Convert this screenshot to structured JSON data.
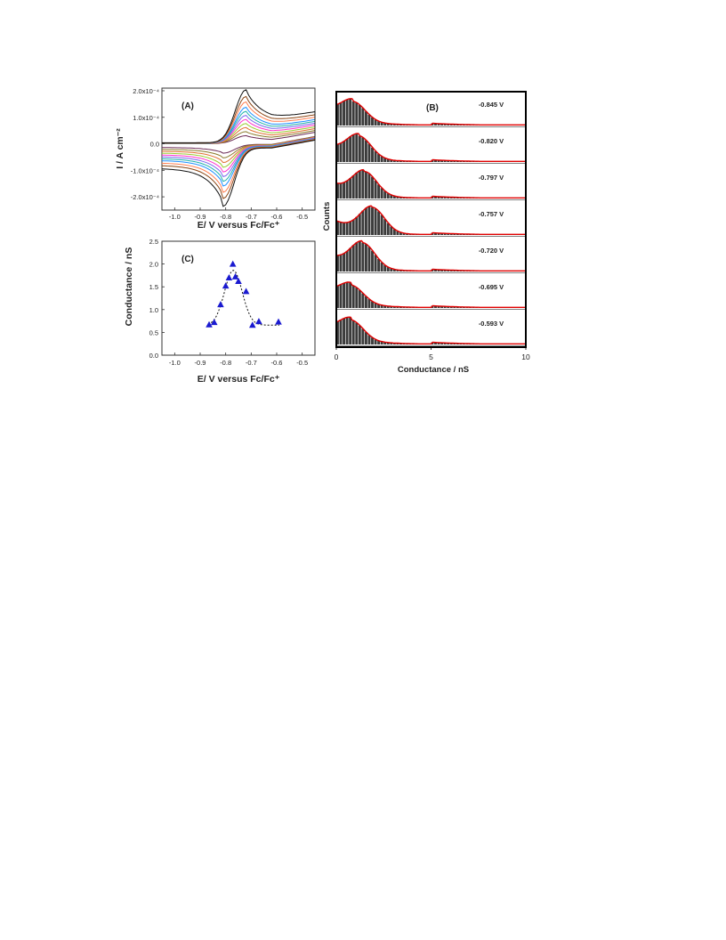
{
  "chart_data": [
    {
      "panel": "(A)",
      "type": "line",
      "title": "",
      "xlabel": "E/ V versus Fc/Fc⁺",
      "ylabel": "I / A cm⁻²",
      "xlim": [
        -1.05,
        -0.45
      ],
      "ylim": [
        -0.00025,
        0.00021
      ],
      "xticks": [
        -1.0,
        -0.9,
        -0.8,
        -0.7,
        -0.6,
        -0.5
      ],
      "xtick_labels": [
        "-1.0",
        "-0.9",
        "-0.8",
        "-0.7",
        "-0.6",
        "-0.5"
      ],
      "yticks": [
        0.0002,
        0.0001,
        0.0,
        -0.0001,
        -0.0002
      ],
      "ytick_labels": [
        "2.0x10⁻⁴",
        "1.0x10⁻⁴",
        "0.0",
        "-1.0x10⁻⁴",
        "-2.0x10⁻⁴"
      ],
      "anodic_peak_E": -0.72,
      "cathodic_peak_E": -0.81,
      "series": [
        {
          "color": "#6b2a55",
          "peak_current": 3e-05
        },
        {
          "color": "#8a7a2a",
          "peak_current": 4.5e-05
        },
        {
          "color": "#e07030",
          "peak_current": 6e-05
        },
        {
          "color": "#9acd32",
          "peak_current": 7.5e-05
        },
        {
          "color": "#ff33cc",
          "peak_current": 9e-05
        },
        {
          "color": "#7b68ee",
          "peak_current": 0.000105
        },
        {
          "color": "#20b2aa",
          "peak_current": 0.00012
        },
        {
          "color": "#1e90ff",
          "peak_current": 0.000135
        },
        {
          "color": "#ff7f50",
          "peak_current": 0.000155
        },
        {
          "color": "#8b4513",
          "peak_current": 0.000175
        },
        {
          "color": "#111111",
          "peak_current": 0.0002
        }
      ]
    },
    {
      "panel": "(B)",
      "type": "bar",
      "title": "",
      "xlabel": "Conductance / nS",
      "ylabel": "Counts",
      "xlim": [
        0,
        10
      ],
      "xticks": [
        0,
        5,
        10
      ],
      "fit_color": "#e00000",
      "histograms": [
        {
          "label": "-0.845 V",
          "peak_nS": 0.9,
          "peak_height": 0.6
        },
        {
          "label": "-0.820 V",
          "peak_nS": 1.2,
          "peak_height": 0.7
        },
        {
          "label": "-0.797 V",
          "peak_nS": 1.5,
          "peak_height": 0.75
        },
        {
          "label": "-0.757 V",
          "peak_nS": 1.9,
          "peak_height": 0.8
        },
        {
          "label": "-0.720 V",
          "peak_nS": 1.4,
          "peak_height": 0.8
        },
        {
          "label": "-0.695 V",
          "peak_nS": 0.8,
          "peak_height": 0.55
        },
        {
          "label": "-0.593 V",
          "peak_nS": 0.8,
          "peak_height": 0.6
        }
      ]
    },
    {
      "panel": "(C)",
      "type": "scatter",
      "title": "",
      "xlabel": "E/ V versus Fc/Fc⁺",
      "ylabel": "Conductance / nS",
      "xlim": [
        -1.05,
        -0.45
      ],
      "ylim": [
        0.0,
        2.5
      ],
      "xticks": [
        -1.0,
        -0.9,
        -0.8,
        -0.7,
        -0.6,
        -0.5
      ],
      "xtick_labels": [
        "-1.0",
        "-0.9",
        "-0.8",
        "-0.7",
        "-0.6",
        "-0.5"
      ],
      "yticks": [
        0.0,
        0.5,
        1.0,
        1.5,
        2.0,
        2.5
      ],
      "ytick_labels": [
        "0.0",
        "0.5",
        "1.0",
        "1.5",
        "2.0",
        "2.5"
      ],
      "marker_color": "#1a1ad0",
      "points": [
        {
          "x": -0.865,
          "y": 0.67
        },
        {
          "x": -0.845,
          "y": 0.72
        },
        {
          "x": -0.82,
          "y": 1.11
        },
        {
          "x": -0.8,
          "y": 1.52
        },
        {
          "x": -0.787,
          "y": 1.7
        },
        {
          "x": -0.772,
          "y": 2.0
        },
        {
          "x": -0.762,
          "y": 1.72
        },
        {
          "x": -0.75,
          "y": 1.62
        },
        {
          "x": -0.72,
          "y": 1.4
        },
        {
          "x": -0.695,
          "y": 0.66
        },
        {
          "x": -0.67,
          "y": 0.74
        },
        {
          "x": -0.593,
          "y": 0.73
        }
      ],
      "fit": {
        "baseline": 0.66,
        "amplitude": 1.2,
        "center": -0.77,
        "sigma": 0.035
      }
    }
  ]
}
